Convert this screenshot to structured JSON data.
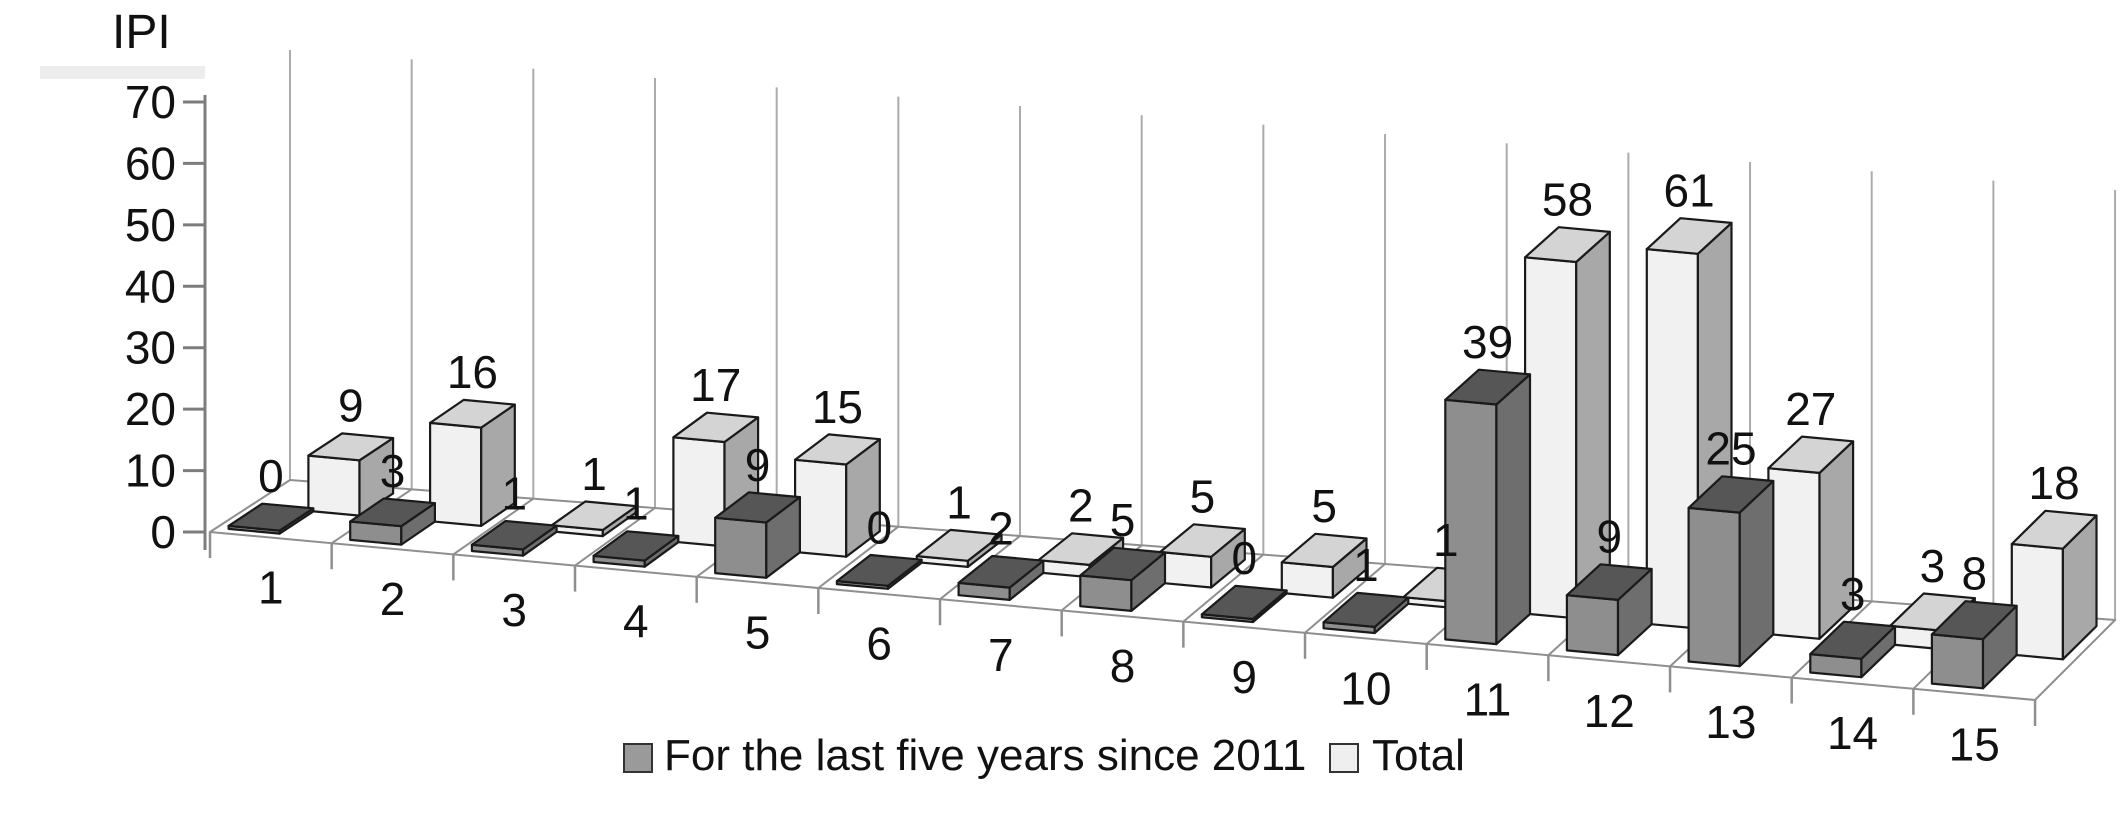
{
  "chart_data": {
    "type": "bar",
    "variant": "3d-column",
    "y_axis_title": "IPI",
    "categories": [
      "1",
      "2",
      "3",
      "4",
      "5",
      "6",
      "7",
      "8",
      "9",
      "10",
      "11",
      "12",
      "13",
      "14",
      "15"
    ],
    "series": [
      {
        "name": "For the last five years since 2011",
        "values": [
          0,
          3,
          1,
          1,
          9,
          0,
          2,
          5,
          0,
          1,
          39,
          9,
          25,
          3,
          8
        ],
        "color_front": "#8e8e8e",
        "color_side": "#6e6e6e",
        "color_top": "#565656",
        "legend_swatch": "#9a9a9a"
      },
      {
        "name": "Total",
        "values": [
          9,
          16,
          1,
          17,
          15,
          1,
          2,
          5,
          5,
          1,
          58,
          61,
          27,
          3,
          18
        ],
        "color_front": "#f1f1f1",
        "color_side": "#a8a8a8",
        "color_top": "#d4d4d4",
        "legend_swatch": "#efefef"
      }
    ],
    "yticks": [
      0,
      10,
      20,
      30,
      40,
      50,
      60,
      70
    ],
    "ylim": [
      0,
      70
    ],
    "grid": "vertical-category-gridlines",
    "legend_position": "bottom",
    "data_labels": "above-bars",
    "colors": {
      "gridline": "#ababab",
      "floor_line": "#8f8f8f",
      "axis_line": "#7d7d7d",
      "bar_outline": "#1a1a1a",
      "label_text": "#111111"
    }
  }
}
